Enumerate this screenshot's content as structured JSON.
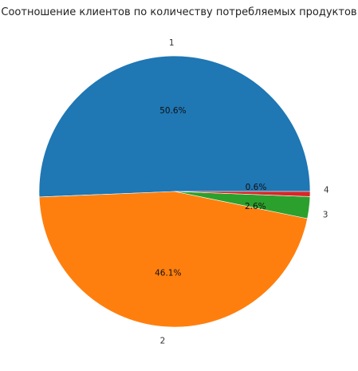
{
  "chart_data": {
    "type": "pie",
    "title": "Соотношение клиентов по количеству потребляемых продуктов",
    "categories": [
      "1",
      "2",
      "3",
      "4"
    ],
    "values": [
      50.6,
      46.1,
      2.6,
      0.6
    ],
    "percent_labels": [
      "50.6%",
      "46.1%",
      "2.6%",
      "0.6%"
    ],
    "colors": [
      "#1f77b4",
      "#ff7f0e",
      "#2ca02c",
      "#d62728"
    ],
    "start_angle_deg": 0,
    "direction": "counterclockwise",
    "legend": "none"
  }
}
